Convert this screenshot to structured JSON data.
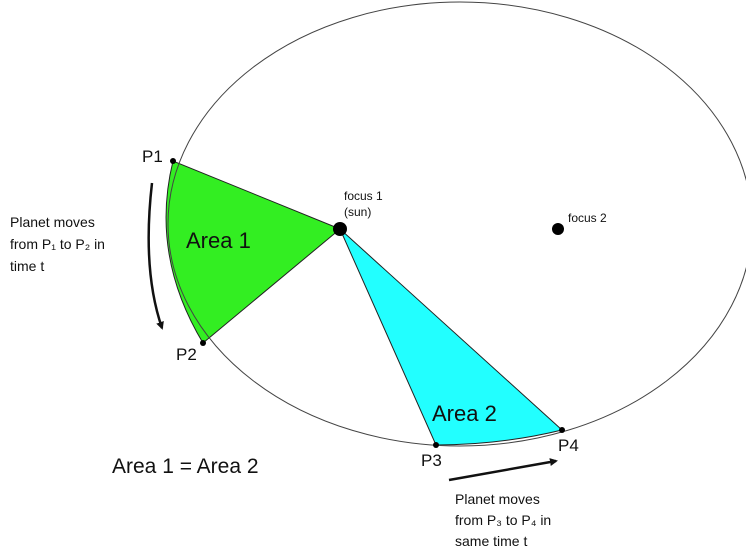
{
  "diagram": {
    "points": {
      "p1": "P1",
      "p2": "P2",
      "p3": "P3",
      "p4": "P4"
    },
    "areas": {
      "area1": {
        "label": "Area 1",
        "color": "#33ee22"
      },
      "area2": {
        "label": "Area 2",
        "color": "#22ffff"
      }
    },
    "foci": {
      "focus1": {
        "line1": "focus 1",
        "line2": "(sun)"
      },
      "focus2": {
        "label": "focus 2"
      }
    },
    "notes": {
      "left": {
        "line1": "Planet moves",
        "line2": "from P₁ to P₂ in",
        "line3": "time t"
      },
      "bottom": {
        "line1": "Planet moves",
        "line2": "from P₃ to P₄ in",
        "line3": "same time t"
      }
    },
    "equation": "Area 1 = Area 2"
  }
}
